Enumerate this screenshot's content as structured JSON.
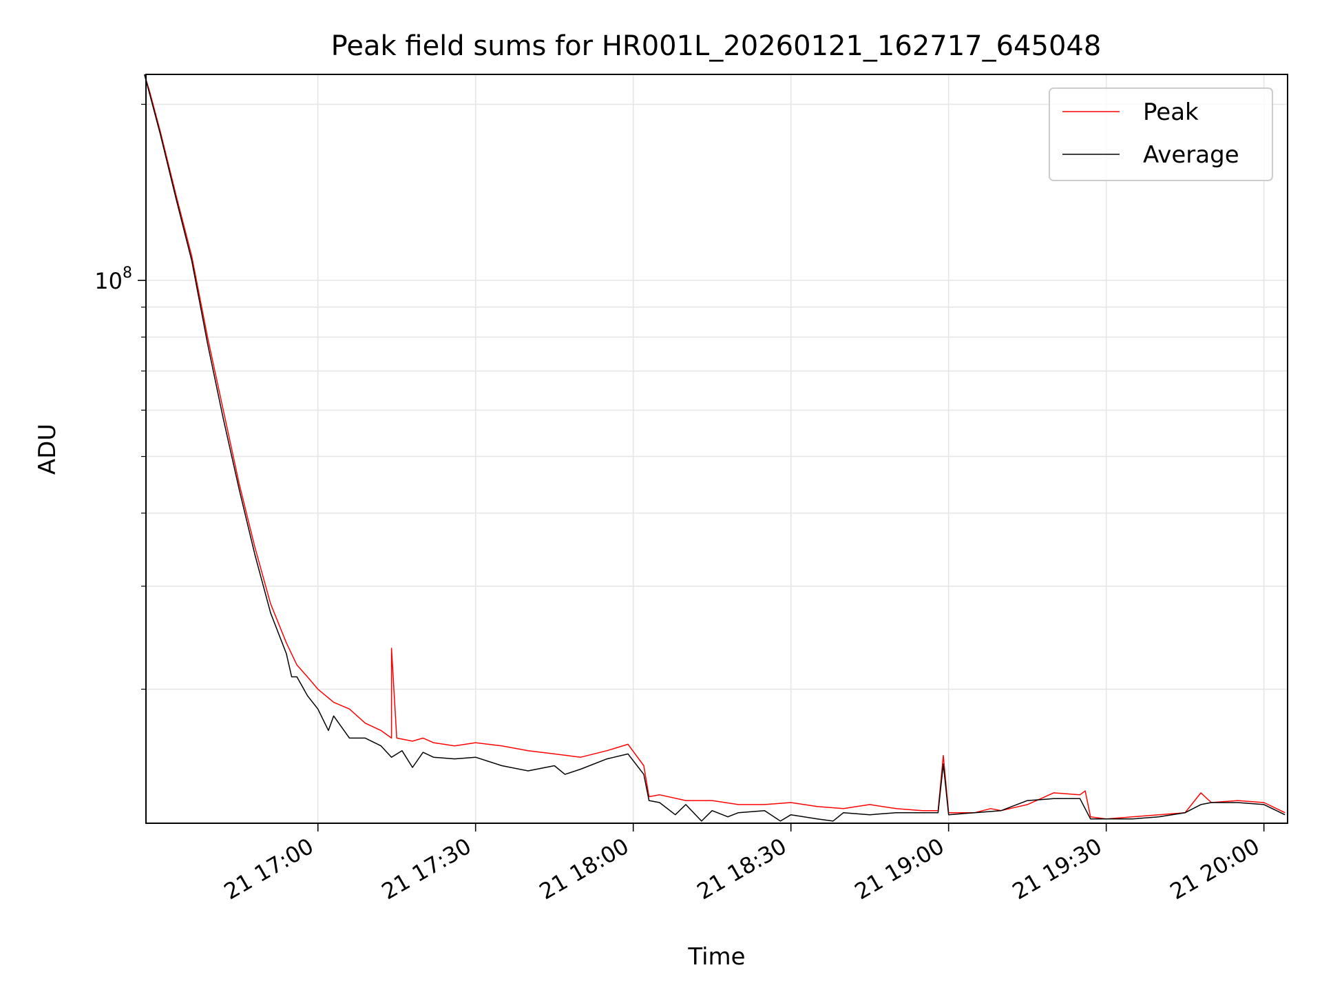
{
  "chart_data": {
    "type": "line",
    "title": "Peak field sums for HR001L_20260121_162717_645048",
    "xlabel": "Time",
    "ylabel": "ADU",
    "yscale": "log",
    "ylim": [
      11800000,
      225000000
    ],
    "xlim": [
      "2026-01-21 16:27:17",
      "2026-01-21 20:04:30"
    ],
    "x_ticks": [
      {
        "t": "2026-01-21 17:00",
        "label": "21 17:00"
      },
      {
        "t": "2026-01-21 17:30",
        "label": "21 17:30"
      },
      {
        "t": "2026-01-21 18:00",
        "label": "21 18:00"
      },
      {
        "t": "2026-01-21 18:30",
        "label": "21 18:30"
      },
      {
        "t": "2026-01-21 19:00",
        "label": "21 19:00"
      },
      {
        "t": "2026-01-21 19:30",
        "label": "21 19:30"
      },
      {
        "t": "2026-01-21 20:00",
        "label": "21 20:00"
      }
    ],
    "y_ticks": [
      {
        "value": 100000000,
        "base": "10",
        "exp": "8"
      }
    ],
    "grid": true,
    "legend": "top-right",
    "series": [
      {
        "name": "Peak",
        "color": "#ff0000",
        "x": [
          "16:27",
          "16:28",
          "16:30",
          "16:33",
          "16:36",
          "16:39",
          "16:42",
          "16:45",
          "16:48",
          "16:51",
          "16:54",
          "16:56",
          "16:58",
          "17:00",
          "17:03",
          "17:06",
          "17:09",
          "17:12",
          "17:14",
          "17:14",
          "17:15",
          "17:18",
          "17:20",
          "17:22",
          "17:26",
          "17:30",
          "17:35",
          "17:40",
          "17:45",
          "17:50",
          "17:55",
          "17:59",
          "18:02",
          "18:03",
          "18:05",
          "18:10",
          "18:15",
          "18:20",
          "18:25",
          "18:30",
          "18:35",
          "18:40",
          "18:45",
          "18:50",
          "18:55",
          "18:58",
          "18:59",
          "19:00",
          "19:05",
          "19:08",
          "19:10",
          "19:15",
          "19:20",
          "19:25",
          "19:26",
          "19:27",
          "19:30",
          "19:35",
          "19:40",
          "19:45",
          "19:48",
          "19:50",
          "19:55",
          "20:00",
          "20:04"
        ],
        "y": [
          225000000,
          210000000,
          180000000,
          140000000,
          110000000,
          80000000,
          60000000,
          45000000,
          35000000,
          28000000,
          24000000,
          22000000,
          21000000,
          20000000,
          19000000,
          18500000,
          17500000,
          17000000,
          16500000,
          23500000,
          16500000,
          16300000,
          16500000,
          16200000,
          16000000,
          16200000,
          16000000,
          15700000,
          15500000,
          15300000,
          15700000,
          16100000,
          14800000,
          13100000,
          13200000,
          12900000,
          12900000,
          12700000,
          12700000,
          12800000,
          12600000,
          12500000,
          12700000,
          12500000,
          12400000,
          12400000,
          15400000,
          12300000,
          12300000,
          12500000,
          12400000,
          12700000,
          13300000,
          13200000,
          13400000,
          12100000,
          12000000,
          12100000,
          12200000,
          12300000,
          13300000,
          12800000,
          12900000,
          12800000,
          12300000
        ]
      },
      {
        "name": "Average",
        "color": "#000000",
        "x": [
          "16:27",
          "16:28",
          "16:30",
          "16:33",
          "16:36",
          "16:39",
          "16:42",
          "16:45",
          "16:48",
          "16:51",
          "16:54",
          "16:55",
          "16:56",
          "16:58",
          "17:00",
          "17:02",
          "17:03",
          "17:06",
          "17:09",
          "17:12",
          "17:14",
          "17:16",
          "17:18",
          "17:20",
          "17:22",
          "17:26",
          "17:30",
          "17:35",
          "17:40",
          "17:45",
          "17:47",
          "17:50",
          "17:55",
          "17:59",
          "18:02",
          "18:03",
          "18:05",
          "18:08",
          "18:10",
          "18:13",
          "18:15",
          "18:18",
          "18:20",
          "18:25",
          "18:28",
          "18:30",
          "18:35",
          "18:38",
          "18:40",
          "18:45",
          "18:50",
          "18:55",
          "18:58",
          "18:59",
          "19:00",
          "19:05",
          "19:10",
          "19:15",
          "19:20",
          "19:25",
          "19:27",
          "19:30",
          "19:35",
          "19:40",
          "19:45",
          "19:48",
          "19:50",
          "19:55",
          "20:00",
          "20:04"
        ],
        "y": [
          225000000,
          208000000,
          178000000,
          138000000,
          108000000,
          78000000,
          58000000,
          44000000,
          34000000,
          27000000,
          23000000,
          21000000,
          21000000,
          19500000,
          18500000,
          17000000,
          18000000,
          16500000,
          16500000,
          16000000,
          15300000,
          15700000,
          14700000,
          15600000,
          15300000,
          15200000,
          15300000,
          14800000,
          14500000,
          14800000,
          14300000,
          14600000,
          15200000,
          15500000,
          14300000,
          12900000,
          12800000,
          12200000,
          12700000,
          11900000,
          12400000,
          12100000,
          12300000,
          12400000,
          11900000,
          12200000,
          12000000,
          11900000,
          12300000,
          12200000,
          12300000,
          12300000,
          12300000,
          14900000,
          12200000,
          12300000,
          12400000,
          12900000,
          13000000,
          13000000,
          12000000,
          12000000,
          12000000,
          12100000,
          12300000,
          12700000,
          12800000,
          12800000,
          12700000,
          12200000
        ]
      }
    ]
  }
}
